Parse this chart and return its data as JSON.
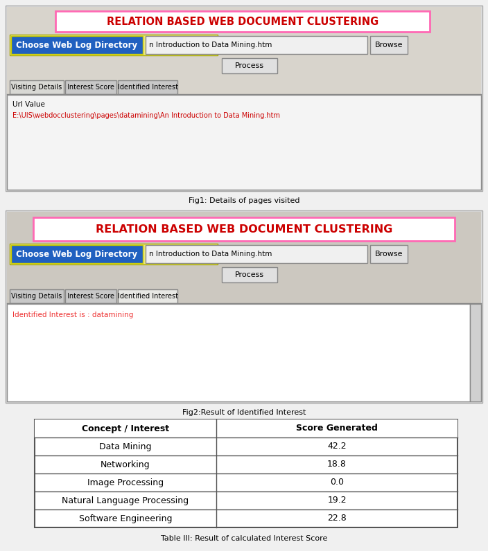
{
  "title_text": "Table III: Result of calculated Interest Score",
  "fig1_caption": "Fig1: Details of pages visited",
  "fig2_caption": "Fig2:Result of Identified Interest",
  "app_title": "RELATION BASED WEB DOCUMENT CLUSTERING",
  "btn1_label": "Choose Web Log Directory",
  "btn2_label": "n Introduction to Data Mining.htm",
  "btn3_label": "Browse",
  "btn4_label": "Process",
  "tab1": "Visiting Details",
  "tab2": "Interest Score",
  "tab3": "Identified Interest",
  "url_label": "Url Value",
  "url_value": "E:\\UIS\\webdocclustering\\pages\\datamining\\An Introduction to Data Mining.htm",
  "identified_text": "Identified Interest is : datamining",
  "table_headers": [
    "Concept / Interest",
    "Score Generated"
  ],
  "table_rows": [
    [
      "Data Mining",
      "42.2"
    ],
    [
      "Networking",
      "18.8"
    ],
    [
      "Image Processing",
      "0.0"
    ],
    [
      "Natural Language Processing",
      "19.2"
    ],
    [
      "Software Engineering",
      "22.8"
    ]
  ],
  "fig_bg": "#dcdcdc",
  "fig_border": "#aaaaaa",
  "panel_inner_bg1": "#d8d4cc",
  "panel_inner_bg2": "#ccc8c0",
  "title_border_color": "#ff69b4",
  "title_text_color": "#cc0000",
  "title_box_bg": "#ffffff",
  "btn_blue_bg": "#2060c0",
  "btn_blue_text": "#ffffff",
  "btn_blue_border": "#cccc00",
  "filepath_bg": "#f0f0f0",
  "filepath_border": "#888888",
  "browse_bg": "#e0e0e0",
  "browse_border": "#888888",
  "process_bg": "#e0e0e0",
  "process_border": "#888888",
  "tab_default_bg": "#c8c8c8",
  "tab_default_border": "#888888",
  "tab_active_bg": "#e8e8e4",
  "content_bg": "#f4f4f4",
  "content_border": "#888888",
  "url_text_color": "#cc0000",
  "identified_color": "#ee3333",
  "table_bg": "#ffffff",
  "table_border_color": "#555555",
  "caption_color": "#444444"
}
